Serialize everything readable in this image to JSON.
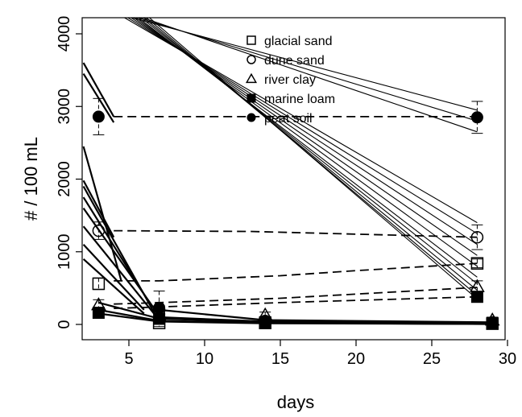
{
  "chart_data": {
    "type": "line",
    "title": "",
    "xlabel": "days",
    "ylabel": "# / 100 mL",
    "xlim": [
      2,
      30
    ],
    "ylim": [
      -200,
      4100
    ],
    "xticks": [
      5,
      10,
      15,
      20,
      25,
      30
    ],
    "yticks": [
      0,
      1000,
      2000,
      3000,
      4000
    ],
    "grid": false,
    "legend_position": "top-center",
    "series": [
      {
        "name": "glacial sand",
        "marker": "open-square",
        "x": [
          3,
          7,
          14,
          28,
          29
        ],
        "y": [
          560,
          20,
          20,
          840,
          10
        ],
        "err": [
          80,
          50,
          40,
          60,
          40
        ]
      },
      {
        "name": "dune sand",
        "marker": "open-circle",
        "x": [
          3,
          7,
          14,
          28,
          29
        ],
        "y": [
          1290,
          200,
          40,
          1200,
          20
        ],
        "err": [
          120,
          60,
          40,
          170,
          40
        ]
      },
      {
        "name": "river clay",
        "marker": "open-triangle",
        "x": [
          3,
          7,
          14,
          28,
          29
        ],
        "y": [
          270,
          120,
          130,
          520,
          60
        ],
        "err": [
          70,
          50,
          40,
          80,
          40
        ]
      },
      {
        "name": "marine loam",
        "marker": "filled-square",
        "x": [
          3,
          7,
          14,
          28,
          29
        ],
        "y": [
          160,
          80,
          30,
          380,
          20
        ],
        "err": [
          60,
          40,
          30,
          50,
          30
        ]
      },
      {
        "name": "peat soil",
        "marker": "filled-circle",
        "x": [
          3,
          7,
          14,
          28,
          29
        ],
        "y": [
          2860,
          230,
          50,
          2850,
          30
        ],
        "err": [
          250,
          230,
          40,
          220,
          40
        ]
      }
    ],
    "dashed_lines": [
      {
        "x": [
          4,
          28
        ],
        "y": [
          2860,
          2860
        ]
      },
      {
        "x": [
          4,
          13,
          28
        ],
        "y": [
          1290,
          1280,
          1200
        ]
      },
      {
        "x": [
          4,
          7,
          15,
          20,
          28
        ],
        "y": [
          600,
          600,
          670,
          740,
          840
        ]
      },
      {
        "x": [
          4,
          7,
          15,
          28
        ],
        "y": [
          280,
          300,
          360,
          510
        ]
      },
      {
        "x": [
          4,
          7,
          15,
          28
        ],
        "y": [
          220,
          240,
          300,
          380
        ]
      }
    ],
    "regression_lines": [
      {
        "x": [
          2,
          28
        ],
        "y": [
          4400,
          2950
        ]
      },
      {
        "x": [
          2,
          28
        ],
        "y": [
          4450,
          2800
        ]
      },
      {
        "x": [
          2,
          28
        ],
        "y": [
          4500,
          2650
        ]
      },
      {
        "x": [
          2,
          28
        ],
        "y": [
          4550,
          1400
        ]
      },
      {
        "x": [
          2,
          28
        ],
        "y": [
          4600,
          1250
        ]
      },
      {
        "x": [
          2,
          28
        ],
        "y": [
          4650,
          1100
        ]
      },
      {
        "x": [
          2,
          28
        ],
        "y": [
          4700,
          950
        ]
      },
      {
        "x": [
          2,
          28
        ],
        "y": [
          4750,
          800
        ]
      },
      {
        "x": [
          2,
          28
        ],
        "y": [
          4800,
          650
        ]
      },
      {
        "x": [
          2,
          28
        ],
        "y": [
          4850,
          560
        ]
      },
      {
        "x": [
          2,
          28
        ],
        "y": [
          4900,
          470
        ]
      },
      {
        "x": [
          2,
          28
        ],
        "y": [
          4950,
          400
        ]
      },
      {
        "x": [
          2,
          28
        ],
        "y": [
          5000,
          350
        ]
      }
    ],
    "decay_lines": [
      {
        "x": [
          2,
          4
        ],
        "y": [
          3600,
          2860
        ]
      },
      {
        "x": [
          2,
          4
        ],
        "y": [
          3450,
          2780
        ]
      },
      {
        "x": [
          2,
          4.5
        ],
        "y": [
          2450,
          600
        ]
      },
      {
        "x": [
          2,
          4
        ],
        "y": [
          1980,
          1200
        ]
      },
      {
        "x": [
          2,
          7
        ],
        "y": [
          1900,
          40
        ]
      },
      {
        "x": [
          2,
          6.5
        ],
        "y": [
          1750,
          250
        ]
      },
      {
        "x": [
          2,
          7
        ],
        "y": [
          1600,
          120
        ]
      },
      {
        "x": [
          2,
          7
        ],
        "y": [
          1350,
          60
        ]
      },
      {
        "x": [
          2,
          6
        ],
        "y": [
          1100,
          200
        ]
      },
      {
        "x": [
          2,
          6
        ],
        "y": [
          900,
          150
        ]
      },
      {
        "x": [
          3,
          7,
          14,
          29
        ],
        "y": [
          300,
          80,
          30,
          10
        ]
      },
      {
        "x": [
          3,
          7,
          14,
          29
        ],
        "y": [
          200,
          50,
          20,
          5
        ]
      },
      {
        "x": [
          3,
          7,
          14,
          29
        ],
        "y": [
          150,
          40,
          15,
          5
        ]
      },
      {
        "x": [
          7,
          14,
          29
        ],
        "y": [
          200,
          60,
          30
        ]
      },
      {
        "x": [
          7,
          14,
          29
        ],
        "y": [
          100,
          40,
          20
        ]
      }
    ]
  }
}
